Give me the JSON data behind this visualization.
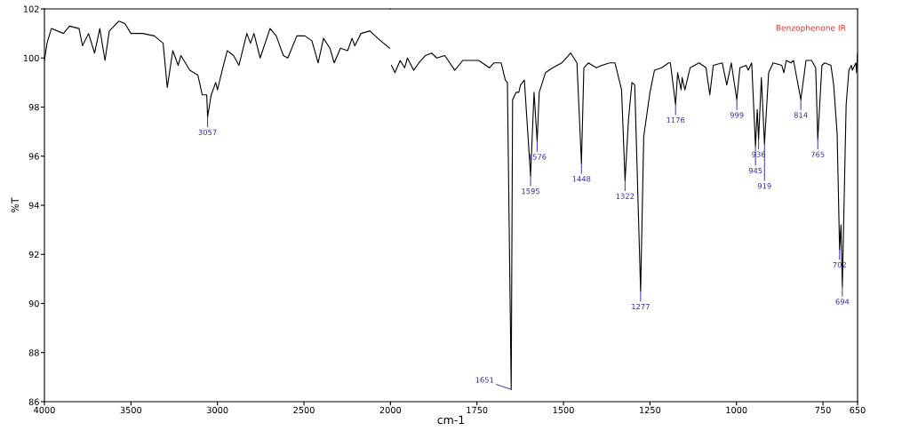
{
  "chart_data": [
    {
      "type": "line",
      "ylabel": "%T",
      "xlim": [
        4000,
        2000
      ],
      "ylim": [
        86,
        102
      ],
      "xticks": [
        4000,
        3500,
        3000,
        2500,
        2000
      ],
      "yticks": [
        86,
        88,
        90,
        92,
        94,
        96,
        98,
        100,
        102
      ],
      "grid": false,
      "legend": false,
      "marker": "none",
      "line_style": "solid",
      "series": [
        {
          "color": "#000000",
          "x": [
            4000,
            3985,
            3960,
            3890,
            3855,
            3800,
            3780,
            3745,
            3710,
            3680,
            3650,
            3625,
            3570,
            3535,
            3500,
            3433,
            3365,
            3314,
            3290,
            3258,
            3227,
            3211,
            3160,
            3113,
            3088,
            3062,
            3057,
            3036,
            3010,
            3000,
            2969,
            2943,
            2907,
            2876,
            2830,
            2809,
            2789,
            2753,
            2696,
            2660,
            2619,
            2593,
            2541,
            2495,
            2454,
            2418,
            2387,
            2350,
            2325,
            2289,
            2247,
            2222,
            2206,
            2170,
            2119,
            2057,
            2005
          ],
          "values": [
            99.9,
            100.6,
            101.2,
            101.0,
            101.3,
            101.2,
            100.5,
            101.0,
            100.2,
            101.2,
            99.9,
            101.1,
            101.5,
            101.4,
            101.0,
            101.0,
            100.9,
            100.6,
            98.8,
            100.3,
            99.7,
            100.1,
            99.5,
            99.3,
            98.5,
            98.5,
            97.6,
            98.5,
            99.0,
            98.7,
            99.6,
            100.3,
            100.1,
            99.7,
            101.0,
            100.6,
            101.0,
            100.0,
            101.2,
            100.9,
            100.1,
            100.0,
            100.9,
            100.9,
            100.7,
            99.8,
            100.8,
            100.4,
            99.8,
            100.4,
            100.3,
            100.8,
            100.5,
            101.0,
            101.1,
            100.7,
            100.4
          ]
        }
      ],
      "annotations": [
        {
          "text": "3057",
          "x": 3057,
          "y": 97.6
        }
      ]
    },
    {
      "type": "line",
      "title": "Benzophenone IR",
      "xlabel": "cm-1",
      "xlim": [
        2000,
        650
      ],
      "ylim": [
        86,
        102
      ],
      "xticks": [
        1750,
        1500,
        1250,
        1000,
        750,
        650
      ],
      "yticks": [
        86,
        88,
        90,
        92,
        94,
        96,
        98,
        100,
        102
      ],
      "tick_labels": "x",
      "grid": false,
      "legend": false,
      "marker": "none",
      "line_style": "solid",
      "series": [
        {
          "color": "#000000",
          "x": [
            1997,
            1987,
            1972,
            1959,
            1951,
            1933,
            1918,
            1899,
            1881,
            1866,
            1843,
            1814,
            1791,
            1771,
            1745,
            1714,
            1701,
            1680,
            1668,
            1662,
            1651,
            1647,
            1637,
            1629,
            1624,
            1613,
            1595,
            1585,
            1576,
            1570,
            1552,
            1531,
            1505,
            1479,
            1461,
            1448,
            1441,
            1428,
            1405,
            1389,
            1366,
            1351,
            1332,
            1322,
            1312,
            1302,
            1294,
            1277,
            1268,
            1250,
            1237,
            1216,
            1196,
            1191,
            1176,
            1170,
            1160,
            1157,
            1149,
            1134,
            1108,
            1088,
            1077,
            1067,
            1041,
            1028,
            1015,
            999,
            990,
            972,
            966,
            956,
            945,
            940,
            936,
            928,
            919,
            907,
            894,
            869,
            863,
            856,
            843,
            835,
            814,
            799,
            783,
            771,
            765,
            753,
            745,
            727,
            719,
            709,
            702,
            698,
            694,
            683,
            675,
            668,
            665,
            655,
            653,
            650
          ],
          "values": [
            99.7,
            99.4,
            99.9,
            99.6,
            100.0,
            99.5,
            99.8,
            100.1,
            100.2,
            100.0,
            100.1,
            99.5,
            99.9,
            99.9,
            99.9,
            99.6,
            99.8,
            99.8,
            99.1,
            99.0,
            86.5,
            98.3,
            98.6,
            98.6,
            98.9,
            99.1,
            95.2,
            98.6,
            96.6,
            98.6,
            99.4,
            99.6,
            99.8,
            100.2,
            99.8,
            95.7,
            99.6,
            99.8,
            99.6,
            99.7,
            99.8,
            99.8,
            98.7,
            95.0,
            97.5,
            99.0,
            98.9,
            90.5,
            96.8,
            98.6,
            99.5,
            99.6,
            99.8,
            99.8,
            98.1,
            99.4,
            98.7,
            99.2,
            98.7,
            99.6,
            99.8,
            99.6,
            98.5,
            99.7,
            99.8,
            98.9,
            99.8,
            98.3,
            99.6,
            99.7,
            99.5,
            99.8,
            96.4,
            97.9,
            96.7,
            99.2,
            96.5,
            99.4,
            99.8,
            99.7,
            99.4,
            99.9,
            99.8,
            99.9,
            98.3,
            99.9,
            99.9,
            99.6,
            96.7,
            99.7,
            99.8,
            99.7,
            98.9,
            96.9,
            92.2,
            93.2,
            90.7,
            98.1,
            99.5,
            99.7,
            99.5,
            99.8,
            99.4,
            100.2
          ]
        }
      ],
      "annotations": [
        {
          "text": "1651",
          "x": 1651,
          "y": 86.5
        },
        {
          "text": "1595",
          "x": 1595,
          "y": 95.2
        },
        {
          "text": "1576",
          "x": 1576,
          "y": 96.6
        },
        {
          "text": "1448",
          "x": 1448,
          "y": 95.7
        },
        {
          "text": "1322",
          "x": 1322,
          "y": 95.0
        },
        {
          "text": "1277",
          "x": 1277,
          "y": 90.5
        },
        {
          "text": "1176",
          "x": 1176,
          "y": 98.1
        },
        {
          "text": "999",
          "x": 999,
          "y": 98.3
        },
        {
          "text": "936",
          "x": 936,
          "y": 96.7
        },
        {
          "text": "945",
          "x": 945,
          "y": 96.4
        },
        {
          "text": "919",
          "x": 919,
          "y": 96.5
        },
        {
          "text": "814",
          "x": 814,
          "y": 98.3
        },
        {
          "text": "765",
          "x": 765,
          "y": 96.7
        },
        {
          "text": "702",
          "x": 702,
          "y": 92.2
        },
        {
          "text": "694",
          "x": 694,
          "y": 90.7
        }
      ]
    }
  ]
}
